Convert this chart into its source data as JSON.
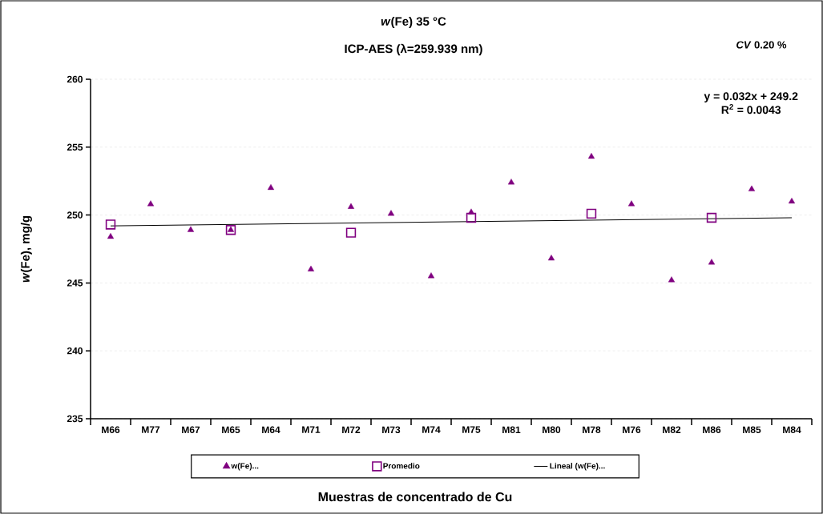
{
  "chart_data": {
    "type": "scatter",
    "title": "*w*(Fe) 35 °C",
    "subtitle": "ICP-AES (λ=259.939 nm)",
    "xlabel": "Muestras de concentrado de Cu",
    "ylabel": "*w*(Fe), mg/g",
    "categories": [
      "M66",
      "M77",
      "M67",
      "M65",
      "M64",
      "M71",
      "M72",
      "M73",
      "M74",
      "M75",
      "M81",
      "M80",
      "M78",
      "M76",
      "M82",
      "M86",
      "M85",
      "M84"
    ],
    "series": [
      {
        "name": "w(Fe)...",
        "marker": "triangle",
        "color": "#800080",
        "values": [
          248.4,
          250.8,
          248.9,
          248.9,
          252.0,
          246.0,
          250.6,
          250.1,
          245.5,
          250.2,
          252.4,
          246.8,
          254.3,
          250.8,
          245.2,
          246.5,
          251.9,
          251.0
        ]
      },
      {
        "name": "Promedio",
        "marker": "square",
        "color": "#800080",
        "values": [
          249.3,
          null,
          null,
          248.9,
          null,
          null,
          248.7,
          null,
          null,
          249.8,
          null,
          null,
          250.1,
          null,
          null,
          249.8,
          null,
          null
        ]
      },
      {
        "name": "Lineal (w(Fe)...",
        "type": "line",
        "marker": "none",
        "line_style": "solid",
        "color": "#000000",
        "x": [
          "M66",
          "M84"
        ],
        "values": [
          249.2,
          249.8
        ]
      }
    ],
    "ylim": [
      235,
      260
    ],
    "yticks": [
      235,
      240,
      245,
      250,
      255,
      260
    ],
    "grid": "y",
    "legend": "bottom",
    "annotations": [
      "y = 0.032x + 249.2",
      "R$^{2}$ = 0.0043",
      "*CV* 0.20 %"
    ]
  }
}
